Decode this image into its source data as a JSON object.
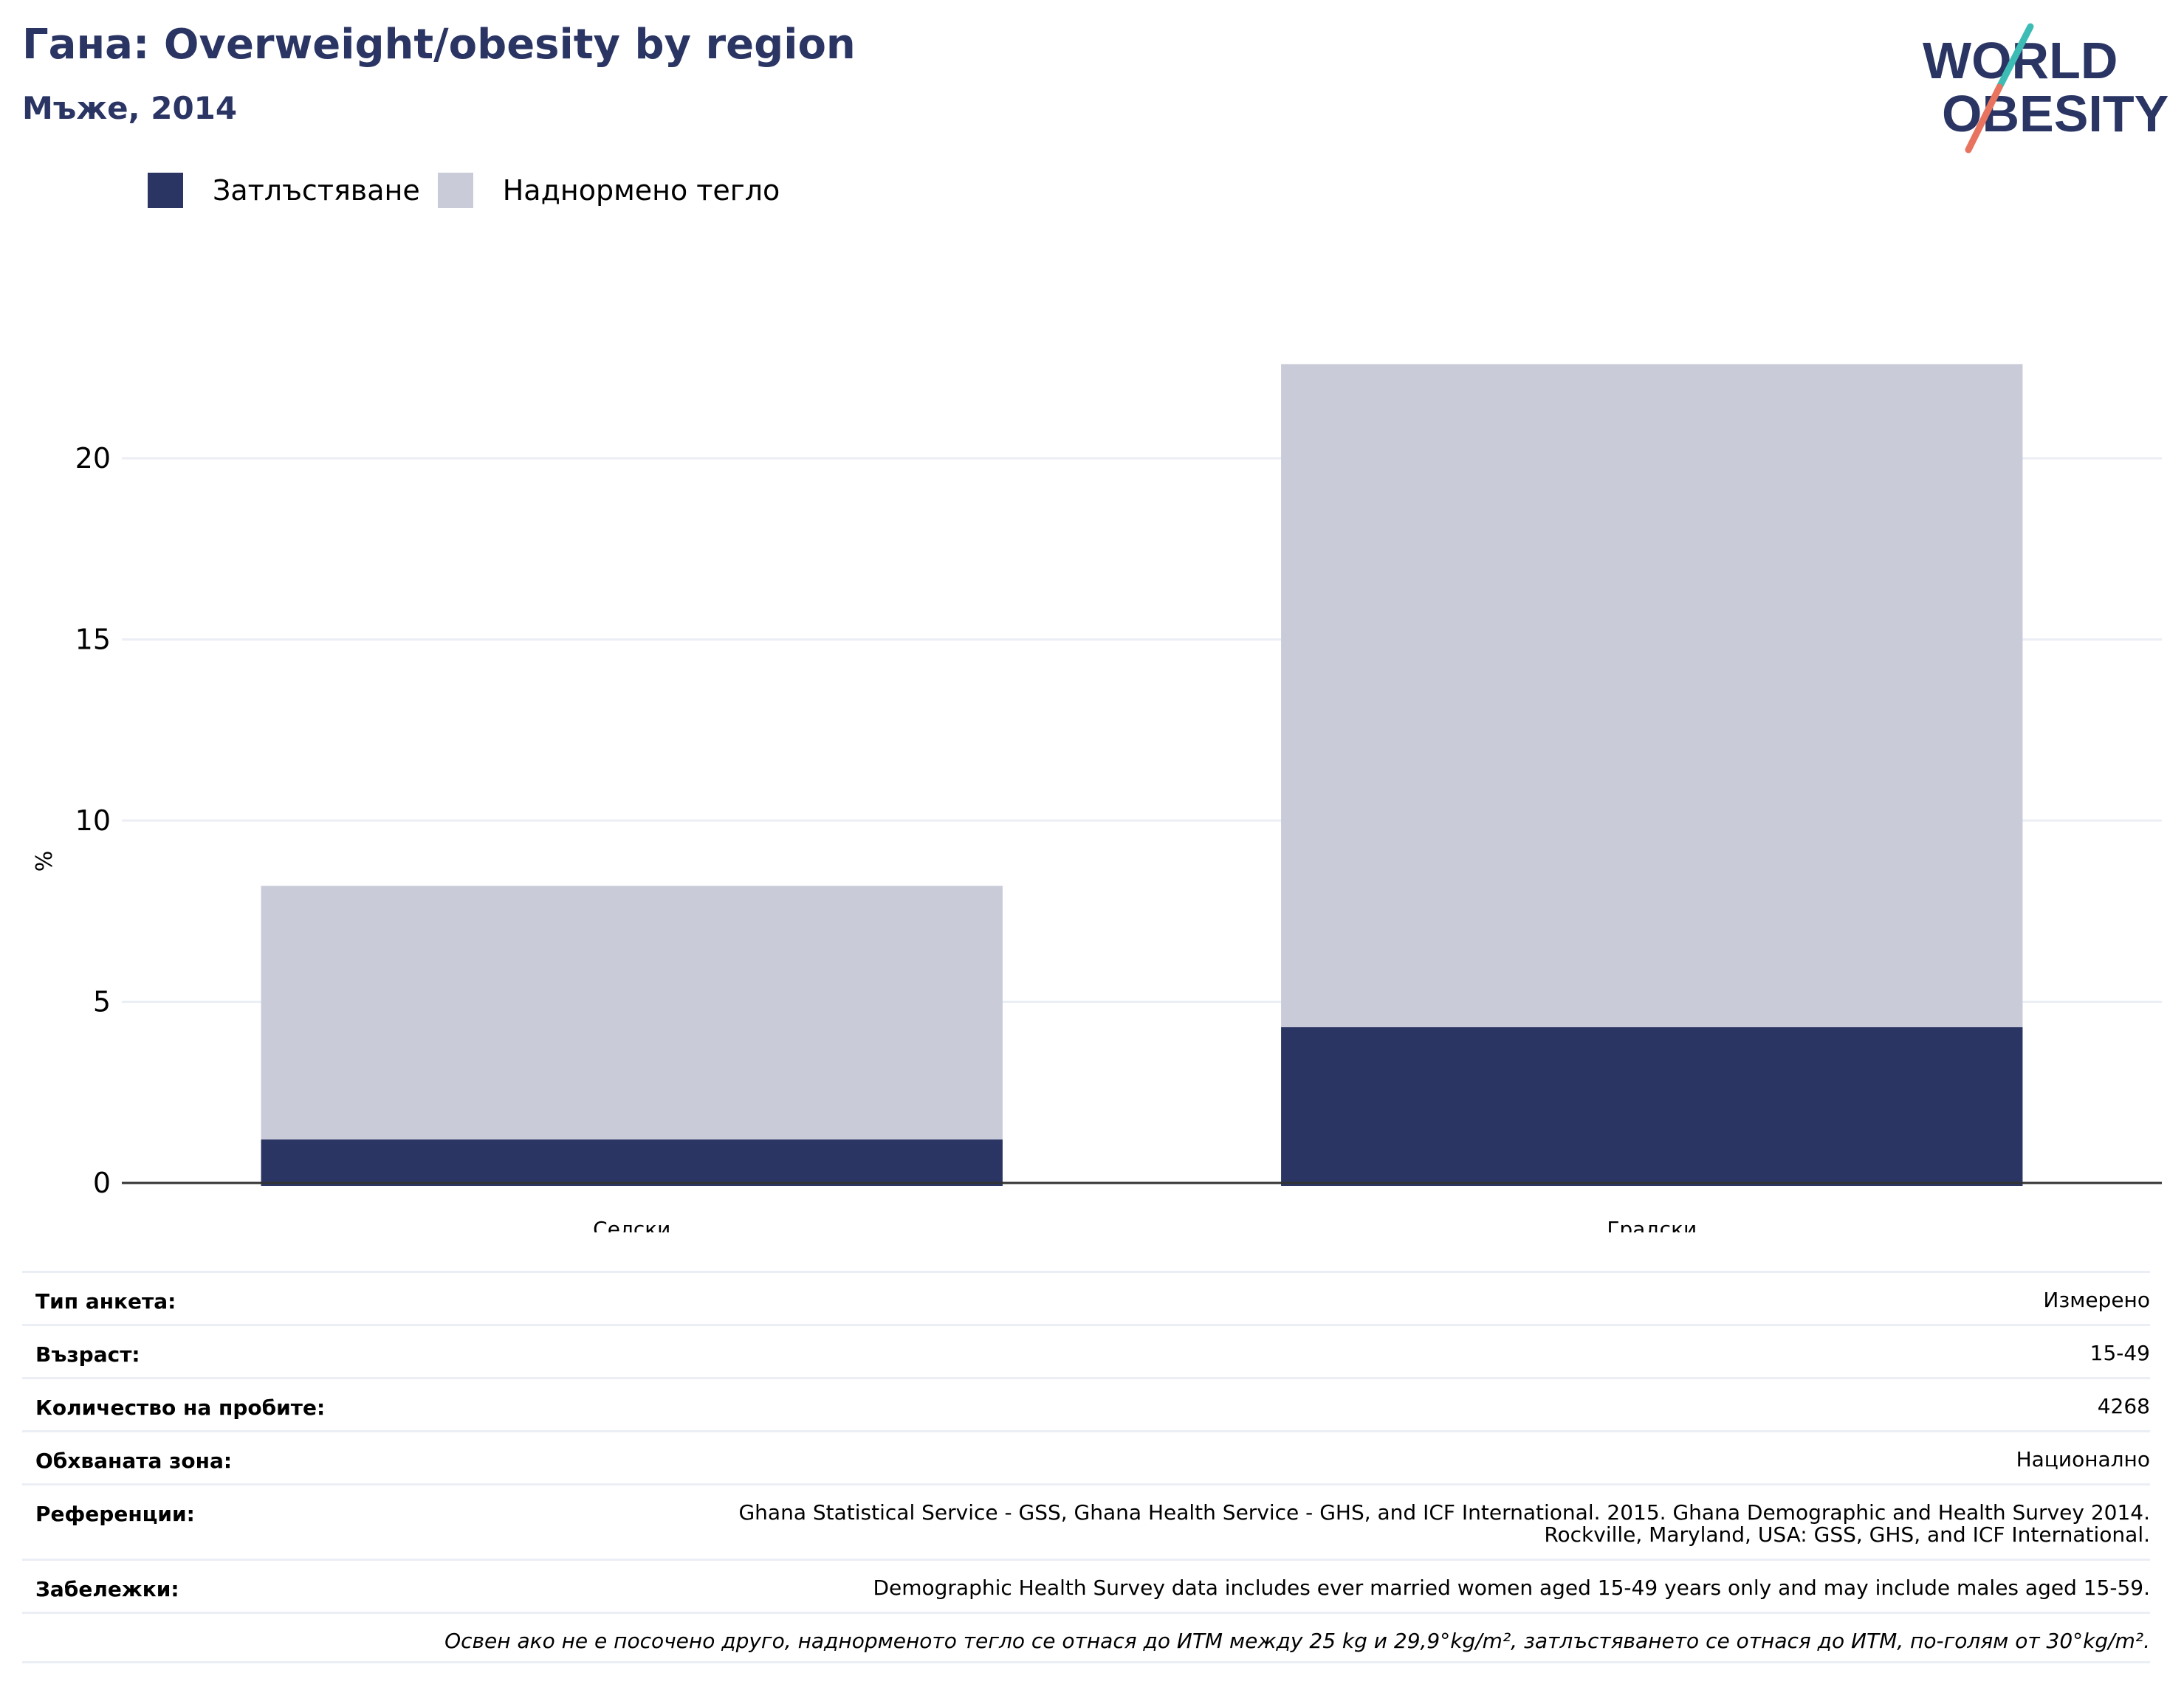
{
  "header": {
    "title": "Гана: Overweight/obesity by region",
    "subtitle": "Мъже, 2014"
  },
  "logo": {
    "line1": "WORLD",
    "line2": "OBESITY"
  },
  "colors": {
    "obesity": "#2a3564",
    "overweight": "#c9ccd8",
    "title": "#2a3564",
    "grid": "#eceef5",
    "logo_teal": "#3cbcb4",
    "logo_coral": "#e8735f"
  },
  "legend": [
    {
      "label": "Затлъстяване",
      "color": "#2a3564"
    },
    {
      "label": "Наднормено тегло",
      "color": "#c9ccd8"
    }
  ],
  "chart_data": {
    "type": "bar",
    "stacked": true,
    "categories": [
      "Селски",
      "Градски"
    ],
    "series": [
      {
        "name": "Затлъстяване",
        "values": [
          1.2,
          4.3
        ]
      },
      {
        "name": "Наднормено тегло",
        "values": [
          7.0,
          18.3
        ]
      }
    ],
    "ylabel": "%",
    "ylim": [
      0,
      25
    ],
    "yticks": [
      0,
      5,
      10,
      15,
      20
    ],
    "grid": true,
    "legend_position": "top-left"
  },
  "info": {
    "survey_type": {
      "label": "Тип анкета:",
      "value": "Измерено"
    },
    "age": {
      "label": "Възраст:",
      "value": "15-49"
    },
    "sample_size": {
      "label": "Количество на пробите:",
      "value": "4268"
    },
    "area_covered": {
      "label": "Обхваната зона:",
      "value": "Национално"
    },
    "references": {
      "label": "Референции:",
      "value_line1": "Ghana Statistical Service - GSS, Ghana Health Service - GHS, and ICF International. 2015. Ghana Demographic and Health Survey 2014.",
      "value_line2": "Rockville, Maryland, USA: GSS, GHS, and ICF International."
    },
    "notes": {
      "label": "Забележки:",
      "value": "Demographic Health Survey data includes ever married women aged 15-49 years only and may include males aged 15-59."
    },
    "footnote": "Освен ако не е посочено друго, наднорменото тегло се отнася до ИТМ между 25 kg и 29,9°kg/m², затлъстяването се отнася до ИТМ, по-голям от 30°kg/m²."
  }
}
